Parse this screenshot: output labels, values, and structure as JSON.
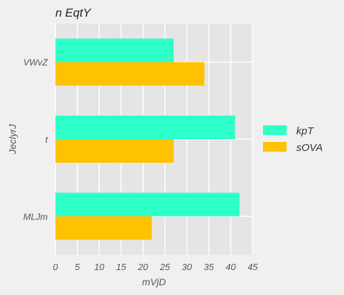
{
  "chart_data": {
    "type": "bar",
    "orientation": "horizontal",
    "title": "n EqtY",
    "xlabel": "mVjD",
    "ylabel": "JeclyrJ",
    "categories": [
      "VWvZ",
      "t",
      "MLJm"
    ],
    "series": [
      {
        "name": "kpT",
        "values": [
          27,
          41,
          42
        ],
        "color": "#2effc8"
      },
      {
        "name": "sOVA",
        "values": [
          34,
          27,
          22
        ],
        "color": "#ffc200"
      }
    ],
    "xlim": [
      0,
      45
    ],
    "xticks": [
      0,
      5,
      10,
      15,
      20,
      25,
      30,
      35,
      40,
      45
    ],
    "grid": true,
    "legend": "right"
  }
}
